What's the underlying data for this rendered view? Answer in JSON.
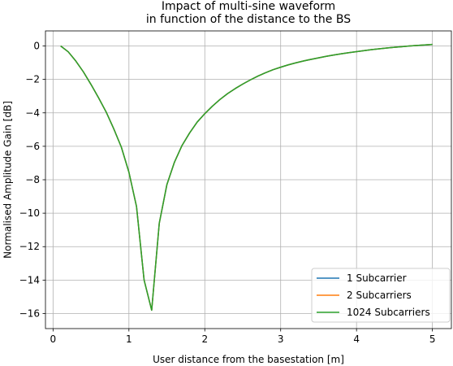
{
  "chart_data": {
    "type": "line",
    "title": "Impact of multi-sine waveform\nin function of the distance to the BS",
    "xlabel": "User distance from the basestation [m]",
    "ylabel": "Normalised Amplitude Gain [dB]",
    "xlim": [
      -0.1,
      5.25
    ],
    "ylim": [
      -16.9,
      0.9
    ],
    "xticks": [
      0,
      1,
      2,
      3,
      4,
      5
    ],
    "yticks": [
      0,
      -2,
      -4,
      -6,
      -8,
      -10,
      -12,
      -14,
      -16
    ],
    "grid": true,
    "legend_position": "bottom-right",
    "x": [
      0.1,
      0.2,
      0.3,
      0.4,
      0.5,
      0.6,
      0.7,
      0.8,
      0.9,
      1.0,
      1.1,
      1.2,
      1.3,
      1.4,
      1.5,
      1.6,
      1.7,
      1.8,
      1.9,
      2.0,
      2.1,
      2.2,
      2.3,
      2.4,
      2.5,
      2.6,
      2.7,
      2.8,
      2.9,
      3.0,
      3.1,
      3.2,
      3.3,
      3.4,
      3.5,
      3.6,
      3.7,
      3.8,
      3.9,
      4.0,
      4.1,
      4.2,
      4.3,
      4.4,
      4.5,
      4.6,
      4.7,
      4.8,
      4.9,
      5.0
    ],
    "series": [
      {
        "name": "1 Subcarrier",
        "color": "#1f77b4",
        "values": [
          0.0,
          -0.35,
          -0.9,
          -1.55,
          -2.3,
          -3.1,
          -3.95,
          -4.95,
          -6.05,
          -7.55,
          -9.6,
          -14.0,
          -15.8,
          -10.6,
          -8.3,
          -6.95,
          -5.95,
          -5.2,
          -4.55,
          -4.05,
          -3.6,
          -3.2,
          -2.85,
          -2.55,
          -2.28,
          -2.03,
          -1.8,
          -1.6,
          -1.42,
          -1.27,
          -1.13,
          -1.01,
          -0.9,
          -0.8,
          -0.71,
          -0.62,
          -0.54,
          -0.47,
          -0.4,
          -0.34,
          -0.28,
          -0.22,
          -0.17,
          -0.12,
          -0.08,
          -0.04,
          0.0,
          0.03,
          0.06,
          0.09
        ]
      },
      {
        "name": "2 Subcarriers",
        "color": "#ff7f0e",
        "values": [
          0.0,
          -0.35,
          -0.9,
          -1.55,
          -2.3,
          -3.1,
          -3.95,
          -4.95,
          -6.05,
          -7.55,
          -9.6,
          -14.0,
          -15.8,
          -10.6,
          -8.3,
          -6.95,
          -5.95,
          -5.2,
          -4.55,
          -4.05,
          -3.6,
          -3.2,
          -2.85,
          -2.55,
          -2.28,
          -2.03,
          -1.8,
          -1.6,
          -1.42,
          -1.27,
          -1.13,
          -1.01,
          -0.9,
          -0.8,
          -0.71,
          -0.62,
          -0.54,
          -0.47,
          -0.4,
          -0.34,
          -0.28,
          -0.22,
          -0.17,
          -0.12,
          -0.08,
          -0.04,
          0.0,
          0.03,
          0.06,
          0.09
        ]
      },
      {
        "name": "1024 Subcarriers",
        "color": "#2ca02c",
        "values": [
          0.0,
          -0.35,
          -0.9,
          -1.55,
          -2.3,
          -3.1,
          -3.95,
          -4.95,
          -6.05,
          -7.55,
          -9.6,
          -14.0,
          -15.8,
          -10.6,
          -8.3,
          -6.95,
          -5.95,
          -5.2,
          -4.55,
          -4.05,
          -3.6,
          -3.2,
          -2.85,
          -2.55,
          -2.28,
          -2.03,
          -1.8,
          -1.6,
          -1.42,
          -1.27,
          -1.13,
          -1.01,
          -0.9,
          -0.8,
          -0.71,
          -0.62,
          -0.54,
          -0.47,
          -0.4,
          -0.34,
          -0.28,
          -0.22,
          -0.17,
          -0.12,
          -0.08,
          -0.04,
          0.0,
          0.03,
          0.06,
          0.09
        ]
      }
    ]
  }
}
